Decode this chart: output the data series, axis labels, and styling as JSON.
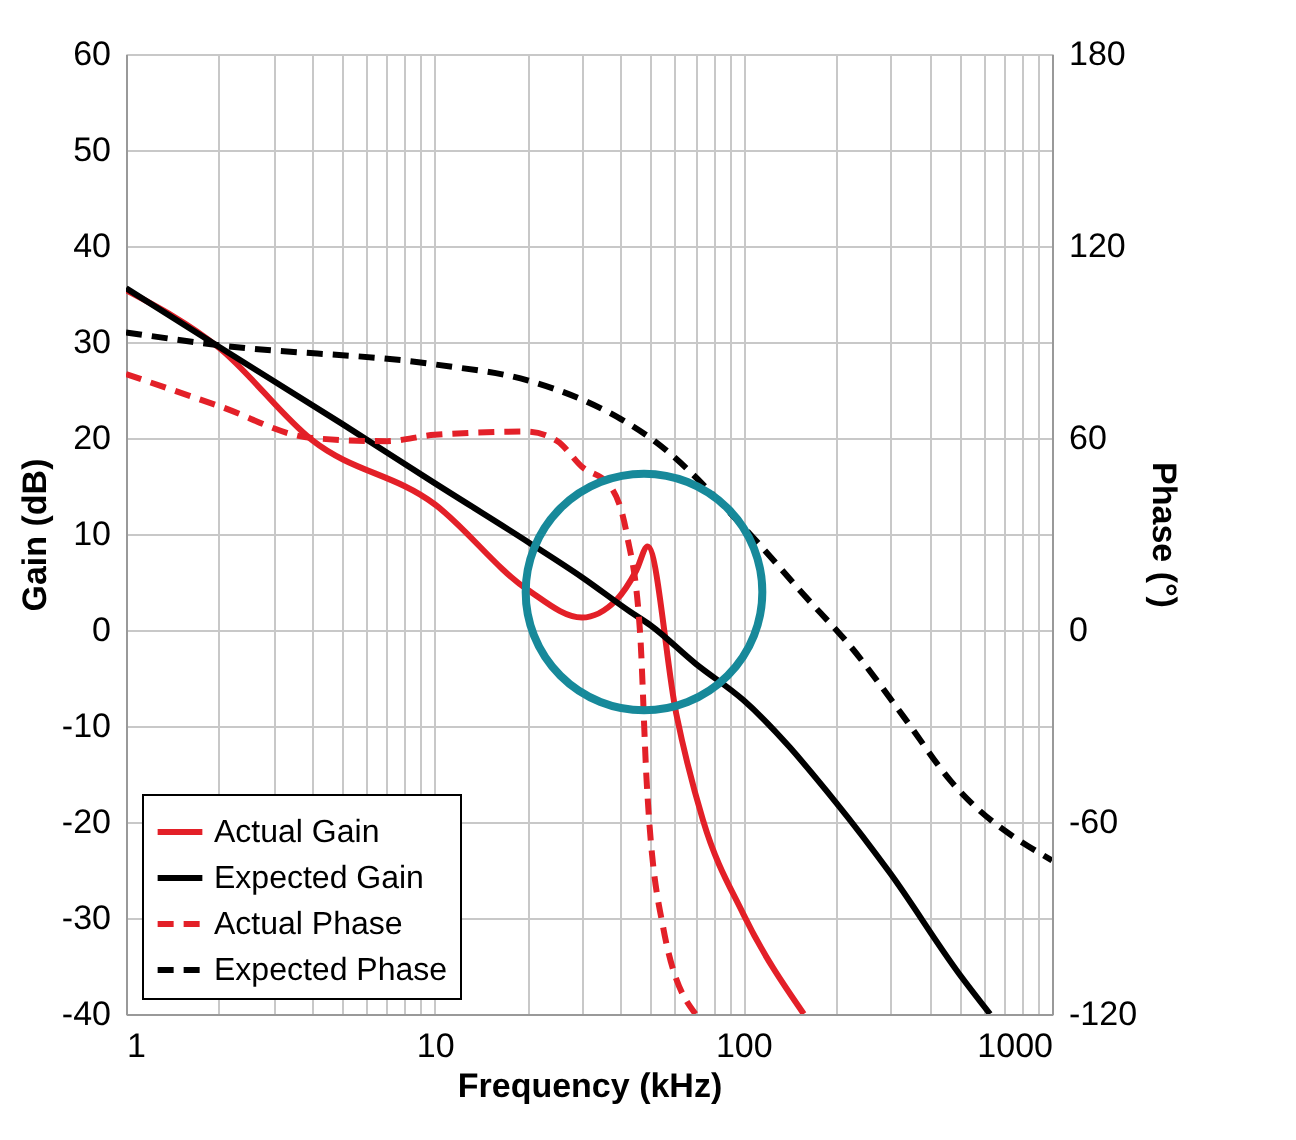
{
  "chart_data": {
    "type": "line",
    "xlabel": "Frequency (kHz)",
    "ylabel": "Gain (dB)",
    "y2label": "Phase (°)",
    "log": "x",
    "grid": true,
    "legend": "bottom left",
    "xlim": [
      1,
      1000
    ],
    "xticks": [
      1,
      {
        "value": 2,
        "label": null
      },
      {
        "value": 3,
        "label": null
      },
      {
        "value": 4,
        "label": null
      },
      {
        "value": 5,
        "label": null
      },
      {
        "value": 6,
        "label": null
      },
      {
        "value": 7,
        "label": null
      },
      {
        "value": 8,
        "label": null
      },
      {
        "value": 9,
        "label": null
      },
      10,
      {
        "value": 20,
        "label": null
      },
      {
        "value": 30,
        "label": null
      },
      {
        "value": 40,
        "label": null
      },
      {
        "value": 50,
        "label": null
      },
      {
        "value": 60,
        "label": null
      },
      {
        "value": 70,
        "label": null
      },
      {
        "value": 80,
        "label": null
      },
      {
        "value": 90,
        "label": null
      },
      100,
      {
        "value": 200,
        "label": null
      },
      {
        "value": 300,
        "label": null
      },
      {
        "value": 400,
        "label": null
      },
      {
        "value": 500,
        "label": null
      },
      {
        "value": 600,
        "label": null
      },
      {
        "value": 700,
        "label": null
      },
      {
        "value": 800,
        "label": null
      },
      {
        "value": 900,
        "label": null
      },
      1000
    ],
    "ylim": [
      -40,
      60
    ],
    "yticks": [
      -40,
      -30,
      -20,
      -10,
      0,
      10,
      20,
      30,
      40,
      50,
      60
    ],
    "y2lim": [
      -120,
      180
    ],
    "y2ticks": [
      -120,
      -60,
      0,
      60,
      120,
      180
    ],
    "series": [
      {
        "name": "Actual Gain",
        "color": "#e32028",
        "line_style": "solid",
        "x": [
          1,
          2,
          4,
          10,
          20,
          30,
          38.7,
          45,
          49,
          60.6,
          74,
          100,
          157
        ],
        "values": [
          35.4,
          29.4,
          19.8,
          13.1,
          4.2,
          1.3,
          3.1,
          6.2,
          8.7,
          -8.7,
          -19.8,
          -29.6,
          -40
        ]
      },
      {
        "name": "Expected Gain",
        "color": "#000000",
        "line_style": "solid",
        "x": [
          1,
          2,
          5,
          10,
          20,
          30,
          43,
          50,
          70,
          100,
          200,
          300,
          500,
          630
        ],
        "values": [
          35.6,
          29.5,
          21.5,
          15.3,
          9.2,
          5.5,
          1.9,
          0.5,
          -3.5,
          -7.3,
          -18,
          -25.4,
          -35.8,
          -40
        ]
      },
      {
        "name": "Actual Phase",
        "color": "#e32028",
        "line_style": "dashed",
        "axis": "y2",
        "x": [
          1,
          2,
          4,
          7,
          10,
          20,
          25,
          30,
          37,
          41.9,
          46.3,
          48.6,
          55,
          70
        ],
        "values": [
          80,
          70,
          60,
          59,
          61,
          62,
          59,
          51,
          45,
          30,
          -1,
          -47,
          -93,
          -120
        ]
      },
      {
        "name": "Expected Phase",
        "color": "#000000",
        "line_style": "dashed",
        "axis": "y2",
        "x": [
          1,
          2,
          10,
          20,
          30,
          40,
          50,
          105,
          157,
          222,
          330,
          468,
          1000
        ],
        "values": [
          93,
          89,
          83,
          78,
          72,
          66,
          60,
          30,
          11,
          -5,
          -27,
          -47,
          -72
        ]
      }
    ]
  }
}
